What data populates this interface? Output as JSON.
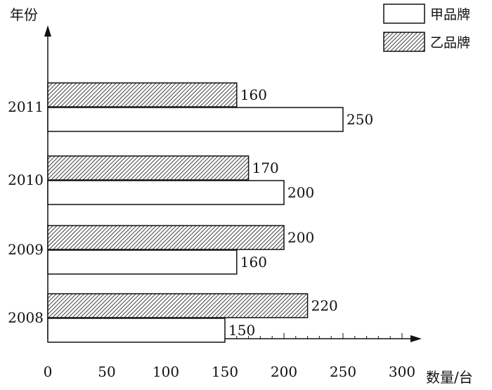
{
  "chart_data": {
    "type": "bar",
    "orientation": "horizontal",
    "categories": [
      "2008",
      "2009",
      "2010",
      "2011"
    ],
    "series": [
      {
        "name": "甲品牌",
        "values": [
          150,
          160,
          200,
          250
        ],
        "fill": "white"
      },
      {
        "name": "乙品牌",
        "values": [
          220,
          200,
          170,
          160
        ],
        "fill": "hatched"
      }
    ],
    "xlabel": "数量/台",
    "ylabel": "年份",
    "xlim": [
      0,
      300
    ],
    "xticks": [
      0,
      50,
      100,
      150,
      200,
      250,
      300
    ],
    "minor_tick_step": 10,
    "grid": false,
    "legend_position": "top-right",
    "data_labels": true
  },
  "colors": {
    "stroke": "#111111",
    "hatch": "#111111",
    "background": "#ffffff"
  }
}
